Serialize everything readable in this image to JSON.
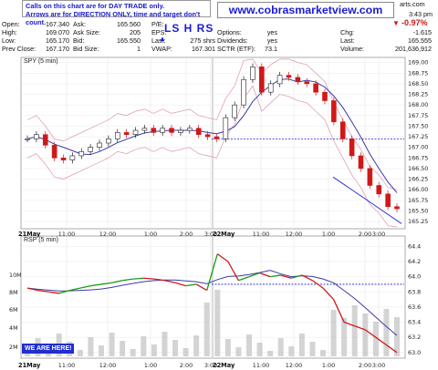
{
  "notice": {
    "line1": "Calls on this chart are for DAY TRADE only.",
    "line2": "Arrows are for DIRECTION ONLY, time and target don't count."
  },
  "website": "www.cobrasmarketview.com",
  "annotation": "LS H RS",
  "corner_text": {
    "domain_fragment": "arts.com",
    "time": "3:43 pm"
  },
  "quote": {
    "col1": [
      {
        "label": "Open:",
        "value": "167.340"
      },
      {
        "label": "High:",
        "value": "169.070"
      },
      {
        "label": "Low:",
        "value": "165.170"
      },
      {
        "label": "Prev Close:",
        "value": "167.170"
      }
    ],
    "col2": [
      {
        "label": "Ask:",
        "value": "165.560"
      },
      {
        "label": "Ask Size:",
        "value": "205"
      },
      {
        "label": "Bid:",
        "value": "165.550"
      },
      {
        "label": "Bid Size:",
        "value": "1"
      }
    ],
    "col3": [
      {
        "label": "P/E:",
        "value": ""
      },
      {
        "label": "EPS:",
        "value": ""
      },
      {
        "label": "Last:",
        "value": "275 shrs"
      },
      {
        "label": "VWAP:",
        "value": "167.301"
      }
    ],
    "col4": [
      {
        "label": "Options:",
        "value": "yes"
      },
      {
        "label": "Dividends:",
        "value": "yes"
      },
      {
        "label": "SCTR (ETF):",
        "value": "73.1"
      }
    ],
    "col5": [
      {
        "label": "Chg:",
        "value": "-1.615"
      },
      {
        "label": "Last:",
        "value": "165.555"
      },
      {
        "label": "Volume:",
        "value": "201,636,912"
      }
    ],
    "pct_change": "-0.97%"
  },
  "price_panel": {
    "label": "SPY (5 min)"
  },
  "rsi_panel": {
    "label": "RSP (5 min)"
  },
  "badge": "WE ARE HERE!",
  "colors": {
    "up": "#1a9a1a",
    "down": "#d01818",
    "blue": "#1b1bd6",
    "ma": "#3a3aa8",
    "band": "#e0a0b8",
    "vol": "#b0b0b0"
  },
  "chart_data": [
    {
      "type": "line",
      "title": "SPY (5 min)",
      "x_ticks": [
        "21May",
        "11:00",
        "12:00",
        "1:00",
        "2:00",
        "3:00",
        "22May",
        "11:00",
        "12:00",
        "1:00",
        "2:00",
        "3:00"
      ],
      "y_ticks": [
        165.25,
        165.5,
        165.75,
        166.0,
        166.25,
        166.5,
        166.75,
        167.0,
        167.25,
        167.5,
        167.75,
        168.0,
        168.25,
        168.5,
        168.75,
        169.0
      ],
      "ylim": [
        165.1,
        169.1
      ],
      "series": [
        {
          "values": [
            167.2,
            167.3,
            167.05,
            166.75,
            166.7,
            166.8,
            166.9,
            167.0,
            167.1,
            167.2,
            167.35,
            167.3,
            167.4,
            167.45,
            167.35,
            167.45,
            167.35,
            167.4,
            167.45,
            167.3,
            167.25,
            167.2,
            167.7,
            168.0,
            168.6,
            168.9,
            168.3,
            168.5,
            168.7,
            168.65,
            168.55,
            168.5,
            168.3,
            168.1,
            167.6,
            167.2,
            166.8,
            166.5,
            166.1,
            165.9,
            165.6,
            165.55
          ]
        }
      ],
      "reference_line": 167.2
    },
    {
      "type": "line",
      "title": "RSP (5 min)",
      "y_ticks": [
        63.0,
        63.2,
        63.4,
        63.6,
        63.8,
        64.0,
        64.2,
        64.4
      ],
      "ylim": [
        62.95,
        64.5
      ],
      "volume_ticks": [
        "2M",
        "4M",
        "6M",
        "8M",
        "10M"
      ],
      "series": [
        {
          "values": [
            63.85,
            63.82,
            63.8,
            63.78,
            63.82,
            63.85,
            63.88,
            63.9,
            63.92,
            63.95,
            63.97,
            63.98,
            63.97,
            63.95,
            63.92,
            63.88,
            63.9,
            63.82,
            64.3,
            64.2,
            63.95,
            64.0,
            64.05,
            64.0,
            64.02,
            63.98,
            64.02,
            63.95,
            63.85,
            63.7,
            63.4,
            63.35,
            63.3,
            63.2,
            63.1,
            63.0
          ]
        }
      ],
      "reference_line": 63.9
    }
  ]
}
